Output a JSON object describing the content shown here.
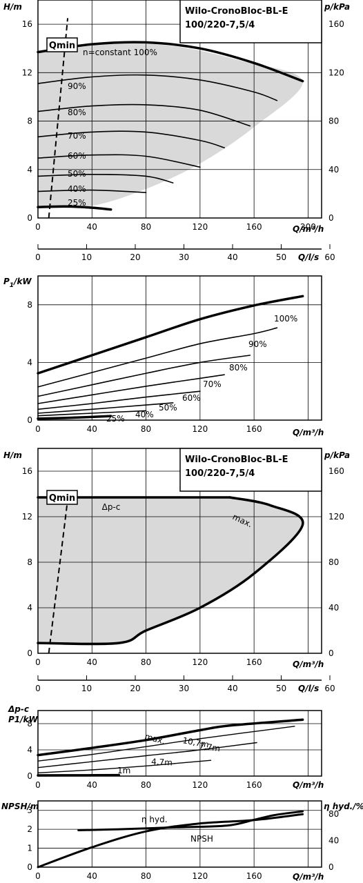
{
  "chart_data": [
    {
      "type": "line",
      "title": "Wilo-CronoBloc-BL-E 100/220-7,5/4",
      "title_line1": "Wilo-CronoBloc-BL-E",
      "title_line2": "100/220-7,5/4",
      "xlabel": "Q/m³/h",
      "ylabel": "H/m",
      "y2label": "p/kPa",
      "xlim": [
        0,
        210
      ],
      "ylim": [
        0,
        18
      ],
      "xticks": [
        "0",
        "40",
        "80",
        "120",
        "160",
        "200"
      ],
      "yticks": [
        "0",
        "4",
        "8",
        "12",
        "16"
      ],
      "y2ticks": [
        "0",
        "40",
        "80",
        "120",
        "160"
      ],
      "qmin_label": "Qmin",
      "qmin_line": {
        "x": [
          8,
          22
        ],
        "y": [
          0,
          16.5
        ]
      },
      "envelope": {
        "x": [
          0,
          50,
          100,
          150,
          196,
          196,
          160,
          120,
          80,
          40,
          0
        ],
        "y": [
          13.7,
          14.4,
          14.2,
          13.0,
          11.3,
          11.3,
          7.5,
          4.5,
          2.4,
          1.0,
          0.8
        ]
      },
      "series": [
        {
          "name": "n=constant 100%",
          "x": [
            0,
            40,
            80,
            120,
            160,
            196
          ],
          "y": [
            13.7,
            14.35,
            14.5,
            14.0,
            12.8,
            11.3
          ]
        },
        {
          "name": "90%",
          "x": [
            0,
            40,
            80,
            120,
            160,
            177
          ],
          "y": [
            11.1,
            11.65,
            11.8,
            11.4,
            10.4,
            9.7
          ]
        },
        {
          "name": "80%",
          "x": [
            0,
            40,
            80,
            120,
            157
          ],
          "y": [
            8.8,
            9.25,
            9.35,
            8.9,
            7.6
          ]
        },
        {
          "name": "70%",
          "x": [
            0,
            40,
            80,
            120,
            138
          ],
          "y": [
            6.7,
            7.1,
            7.1,
            6.4,
            5.8
          ]
        },
        {
          "name": "60%",
          "x": [
            0,
            40,
            80,
            120
          ],
          "y": [
            4.95,
            5.2,
            5.1,
            4.2
          ]
        },
        {
          "name": "50%",
          "x": [
            0,
            40,
            80,
            100
          ],
          "y": [
            3.45,
            3.6,
            3.45,
            2.9
          ]
        },
        {
          "name": "40%",
          "x": [
            0,
            40,
            80
          ],
          "y": [
            2.2,
            2.3,
            2.1
          ]
        },
        {
          "name": "25%",
          "x": [
            0,
            20,
            40,
            54
          ],
          "y": [
            0.9,
            0.95,
            0.85,
            0.7
          ]
        }
      ]
    },
    {
      "type": "axis",
      "xlabel": "Q/l/s",
      "xlim": [
        0,
        58.3
      ],
      "xticks": [
        "0",
        "10",
        "20",
        "30",
        "40",
        "50",
        "60"
      ]
    },
    {
      "type": "line",
      "xlabel": "Q/m³/h",
      "ylabel": "P1/kW",
      "xlim": [
        0,
        210
      ],
      "ylim": [
        0,
        10
      ],
      "xticks": [
        "0",
        "40",
        "80",
        "120",
        "160"
      ],
      "yticks": [
        "0",
        "4",
        "8"
      ],
      "series": [
        {
          "name": "100%",
          "x": [
            0,
            40,
            80,
            120,
            160,
            196
          ],
          "y": [
            3.25,
            4.5,
            5.75,
            7.0,
            7.95,
            8.6
          ]
        },
        {
          "name": "90%",
          "x": [
            0,
            40,
            80,
            120,
            160,
            177
          ],
          "y": [
            2.3,
            3.3,
            4.3,
            5.3,
            6.0,
            6.4
          ]
        },
        {
          "name": "80%",
          "x": [
            0,
            40,
            80,
            120,
            157
          ],
          "y": [
            1.65,
            2.45,
            3.25,
            4.0,
            4.5
          ]
        },
        {
          "name": "70%",
          "x": [
            0,
            40,
            80,
            120,
            138
          ],
          "y": [
            1.15,
            1.75,
            2.35,
            2.9,
            3.15
          ]
        },
        {
          "name": "60%",
          "x": [
            0,
            40,
            80,
            120
          ],
          "y": [
            0.75,
            1.15,
            1.6,
            2.0
          ]
        },
        {
          "name": "50%",
          "x": [
            0,
            40,
            80,
            100
          ],
          "y": [
            0.48,
            0.75,
            1.05,
            1.2
          ]
        },
        {
          "name": "40%",
          "x": [
            0,
            40,
            80
          ],
          "y": [
            0.3,
            0.48,
            0.65
          ]
        },
        {
          "name": "25%",
          "x": [
            0,
            20,
            40,
            54
          ],
          "y": [
            0.1,
            0.15,
            0.22,
            0.28
          ]
        }
      ]
    },
    {
      "type": "line",
      "title": "Wilo-CronoBloc-BL-E 100/220-7,5/4",
      "title_line1": "Wilo-CronoBloc-BL-E",
      "title_line2": "100/220-7,5/4",
      "xlabel": "Q/m³/h",
      "ylabel": "H/m",
      "y2label": "p/kPa",
      "xlim": [
        0,
        210
      ],
      "ylim": [
        0,
        18
      ],
      "xticks": [
        "0",
        "40",
        "80",
        "120",
        "160"
      ],
      "yticks": [
        "0",
        "4",
        "8",
        "12",
        "16"
      ],
      "y2ticks": [
        "0",
        "40",
        "80",
        "120",
        "160"
      ],
      "qmin_label": "Qmin",
      "qmin_line": {
        "x": [
          8,
          22
        ],
        "y": [
          0,
          13.5
        ]
      },
      "envelope": {
        "x": [
          0,
          142,
          172,
          196,
          160,
          120,
          80,
          60,
          0
        ],
        "y": [
          13.7,
          13.7,
          13.0,
          11.3,
          7.0,
          4.0,
          2.0,
          0.9,
          0.9
        ]
      },
      "series": [
        {
          "name": "Δp-c",
          "x": [
            0,
            142
          ],
          "y": [
            13.7,
            13.7
          ]
        },
        {
          "name": "max.",
          "x": [
            142,
            172,
            196,
            160,
            120,
            80,
            60,
            0
          ],
          "y": [
            13.7,
            13.0,
            11.3,
            7.0,
            4.0,
            2.0,
            0.9,
            0.9
          ]
        }
      ]
    },
    {
      "type": "axis",
      "xlabel": "Q/l/s",
      "xlim": [
        0,
        58.3
      ],
      "xticks": [
        "0",
        "10",
        "20",
        "30",
        "40",
        "50",
        "60"
      ]
    },
    {
      "type": "line",
      "ylabel_line1": "Δp-c",
      "ylabel_line2": "P1/kW",
      "xlabel": "Q/m³/h",
      "xlim": [
        0,
        210
      ],
      "ylim": [
        0,
        10
      ],
      "xticks": [
        "0",
        "40",
        "80",
        "120",
        "160"
      ],
      "yticks": [
        "0",
        "4",
        "8"
      ],
      "series": [
        {
          "name": "max.",
          "x": [
            0,
            40,
            80,
            120,
            142,
            196
          ],
          "y": [
            3.2,
            4.3,
            5.5,
            7.0,
            7.7,
            8.6
          ]
        },
        {
          "name": "10,7m",
          "x": [
            0,
            40,
            80,
            120,
            190
          ],
          "y": [
            2.3,
            3.3,
            4.5,
            5.7,
            7.6
          ]
        },
        {
          "name": "7,7m",
          "x": [
            0,
            40,
            80,
            120,
            162
          ],
          "y": [
            1.3,
            2.2,
            3.1,
            4.0,
            5.1
          ]
        },
        {
          "name": "4,7m",
          "x": [
            0,
            40,
            80,
            128
          ],
          "y": [
            0.5,
            0.95,
            1.55,
            2.4
          ]
        },
        {
          "name": "1m",
          "x": [
            0,
            30,
            60
          ],
          "y": [
            0.1,
            0.12,
            0.15
          ]
        }
      ]
    },
    {
      "type": "line",
      "xlabel": "Q/m³/h",
      "ylabel": "NPSH/m",
      "y2label": "η hyd./%",
      "xlim": [
        0,
        210
      ],
      "ylim": [
        0,
        3.5
      ],
      "y2lim": [
        0,
        100
      ],
      "xticks": [
        "0",
        "40",
        "80",
        "120",
        "160"
      ],
      "yticks": [
        "0",
        "1",
        "2",
        "3"
      ],
      "y2ticks": [
        "0",
        "40",
        "80"
      ],
      "series": [
        {
          "name": "η hyd.",
          "axis": "right",
          "x": [
            0,
            40,
            80,
            120,
            160,
            196
          ],
          "y": [
            0,
            30,
            54,
            66,
            71,
            80
          ]
        },
        {
          "name": "NPSH",
          "axis": "left",
          "x": [
            30,
            60,
            100,
            140,
            160,
            175,
            196
          ],
          "y": [
            1.95,
            2.0,
            2.1,
            2.2,
            2.5,
            2.75,
            2.95
          ]
        }
      ]
    }
  ]
}
